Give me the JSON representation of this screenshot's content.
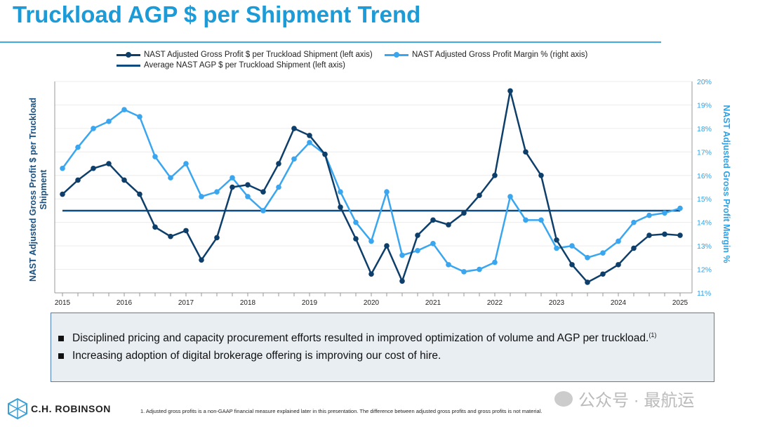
{
  "title": "Truckload AGP $ per Shipment Trend",
  "legend": {
    "series1": "NAST Adjusted Gross Profit $ per Truckload Shipment (left axis)",
    "series2": "NAST Adjusted Gross Profit Margin % (right axis)",
    "series3": "Average NAST AGP $ per Truckload Shipment (left axis)"
  },
  "chart_data": {
    "type": "line",
    "title": "Truckload AGP $ per Shipment Trend",
    "ylabel": "NAST Adjusted Gross Profit $ per Truckload Shipment",
    "ylabel_right": "NAST Adjusted Gross Profit Margin %",
    "x_ticks": [
      "2015",
      "2016",
      "2017",
      "2018",
      "2019",
      "2020",
      "2021",
      "2022",
      "2023",
      "2024",
      "2025"
    ],
    "x_note": "quarterly points, index 0 = 2015 Q1, 40 = 2025 Q1",
    "y_right_ticks": [
      "11%",
      "12%",
      "13%",
      "14%",
      "15%",
      "16%",
      "17%",
      "18%",
      "19%",
      "20%"
    ],
    "y_right_range": [
      11,
      20
    ],
    "left_axis_note": "left axis unlabeled; values expressed on right-axis-equivalent grid scale",
    "grid": true,
    "legend_position": "top",
    "series": [
      {
        "name": "NAST Adjusted Gross Profit $ per Truckload Shipment (left axis)",
        "color": "#0e3f6b",
        "values": [
          15.2,
          15.8,
          16.3,
          16.5,
          15.8,
          15.2,
          13.8,
          13.4,
          13.65,
          12.4,
          13.35,
          15.5,
          15.6,
          15.3,
          16.5,
          18.0,
          17.7,
          16.9,
          14.65,
          13.3,
          11.8,
          13.0,
          11.5,
          13.45,
          14.1,
          13.9,
          14.4,
          15.15,
          16.0,
          19.6,
          17.0,
          16.0,
          13.25,
          12.2,
          11.45,
          11.8,
          12.2,
          12.9,
          13.45,
          13.5,
          13.45
        ]
      },
      {
        "name": "NAST Adjusted Gross Profit Margin % (right axis)",
        "color": "#3aa6ef",
        "values": [
          16.3,
          17.2,
          18.0,
          18.3,
          18.8,
          18.5,
          16.8,
          15.9,
          16.5,
          15.1,
          15.3,
          15.9,
          15.1,
          14.5,
          15.5,
          16.7,
          17.4,
          16.9,
          15.3,
          14.0,
          13.2,
          15.3,
          12.6,
          12.8,
          13.1,
          12.2,
          11.9,
          12.0,
          12.3,
          15.1,
          14.1,
          14.1,
          12.9,
          13.0,
          12.5,
          12.7,
          13.2,
          14.0,
          14.3,
          14.4,
          14.6
        ]
      },
      {
        "name": "Average NAST AGP $ per Truckload Shipment (left axis)",
        "color": "#0e4a7e",
        "constant": 14.5
      }
    ]
  },
  "bullets": [
    "Disciplined pricing and capacity procurement efforts resulted in improved optimization of volume and AGP per truckload.",
    "Increasing adoption of digital brokerage offering is improving our cost of hire."
  ],
  "bullet1_sup": "(1)",
  "logo": "C.H. ROBINSON",
  "footnote": "1.  Adjusted gross profits is a non-GAAP financial measure explained later in this presentation. The difference between adjusted gross profits and gross profits is not material.",
  "watermark": "公众号 · 最航运"
}
